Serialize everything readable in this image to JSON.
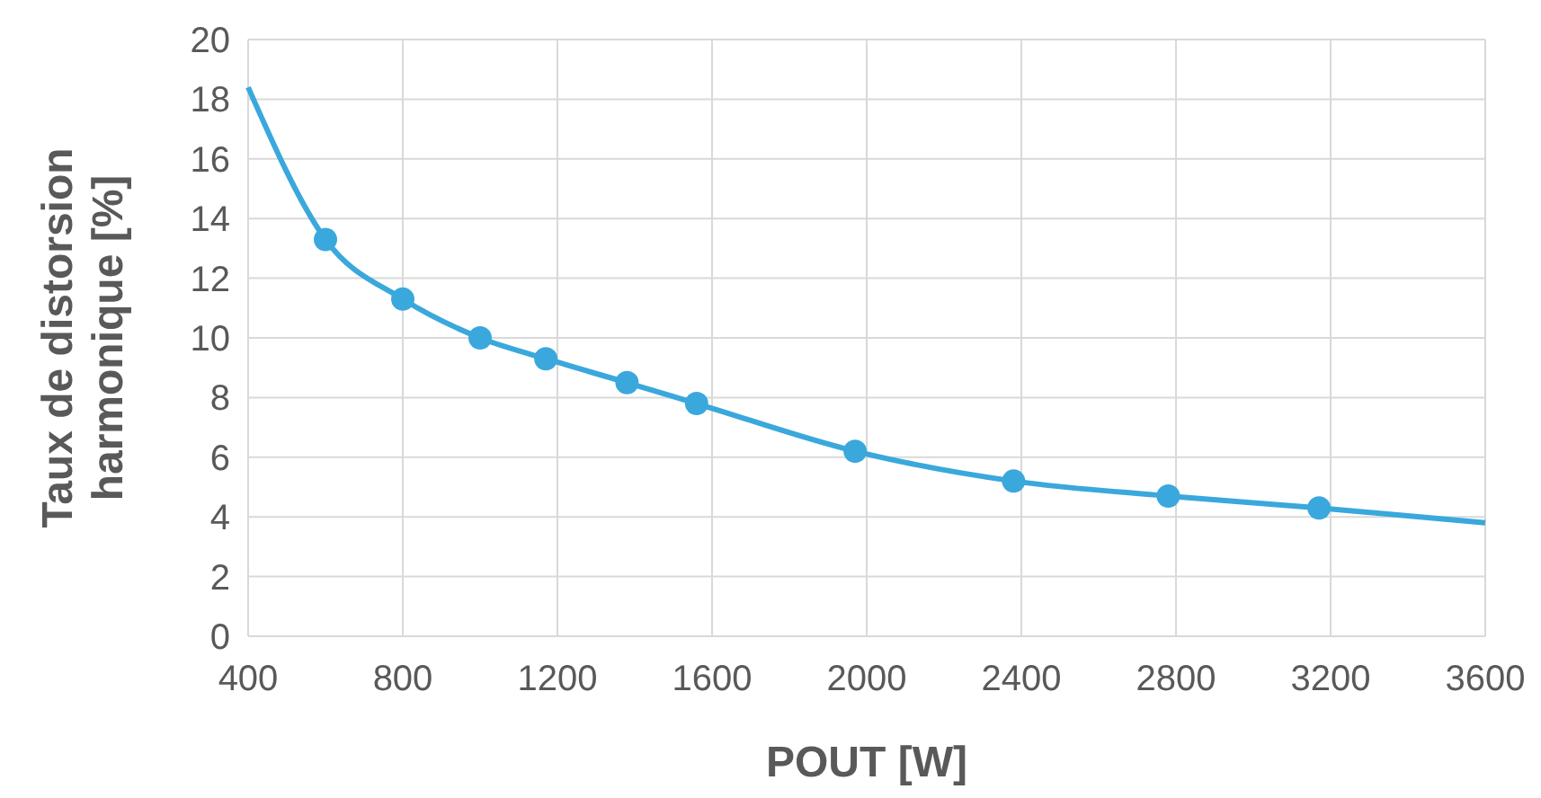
{
  "chart_data": {
    "type": "line",
    "xlabel": "POUT [W]",
    "ylabel": "Taux de distorsion harmonique  [%]",
    "xlim": [
      400,
      3600
    ],
    "xticks": [
      400,
      800,
      1200,
      1600,
      2000,
      2400,
      2800,
      3200,
      3600
    ],
    "ylim": [
      0,
      20
    ],
    "yticks": [
      0,
      2,
      4,
      6,
      8,
      10,
      12,
      14,
      16,
      18,
      20
    ],
    "grid": true,
    "series": [
      {
        "type": "line",
        "color": "#3aa8dc",
        "marker": "none",
        "x": [
          400,
          600,
          800,
          1000,
          1170,
          1380,
          1560,
          1970,
          2380,
          2780,
          3170,
          3600
        ],
        "values": [
          18.4,
          13.3,
          11.3,
          10.0,
          9.3,
          8.5,
          7.8,
          6.2,
          5.2,
          4.7,
          4.3,
          3.8
        ]
      },
      {
        "type": "scatter",
        "color": "#3aa8dc",
        "marker": "circle",
        "x": [
          600,
          800,
          1000,
          1170,
          1380,
          1560,
          1970,
          2380,
          2780,
          3170
        ],
        "values": [
          13.3,
          11.3,
          10.0,
          9.3,
          8.5,
          7.8,
          6.2,
          5.2,
          4.7,
          4.3
        ]
      }
    ]
  }
}
